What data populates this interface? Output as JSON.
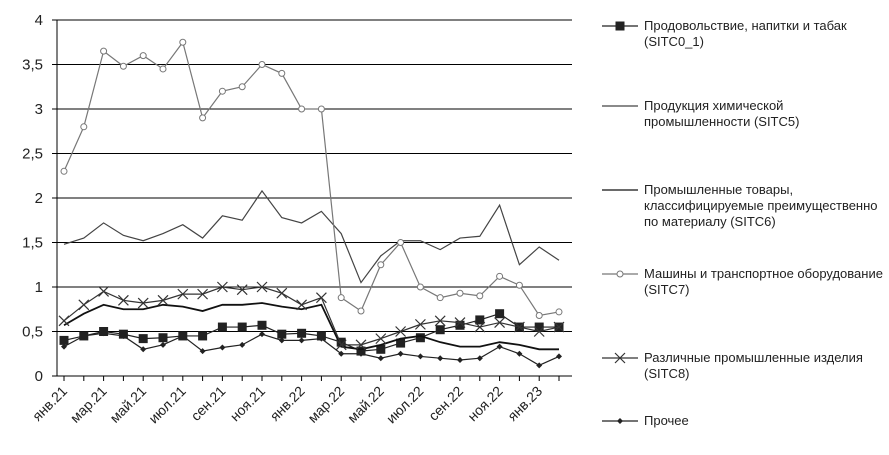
{
  "chart_data": {
    "type": "line",
    "categories": [
      "янв.21",
      null,
      "мар.21",
      null,
      "май.21",
      null,
      "июл.21",
      null,
      "сен.21",
      null,
      "ноя.21",
      null,
      "янв.22",
      null,
      "мар.22",
      null,
      "май.22",
      null,
      "июл.22",
      null,
      "сен.22",
      null,
      "ноя.22",
      null,
      "янв.23",
      null
    ],
    "ylim": [
      0,
      4
    ],
    "yticks": [
      0,
      {
        "value": 0.5,
        "label": "0,5"
      },
      1,
      {
        "value": 1.5,
        "label": "1,5"
      },
      2,
      {
        "value": 2.5,
        "label": "2,5"
      },
      3,
      {
        "value": 3.5,
        "label": "3,5"
      },
      4
    ],
    "grid": true,
    "legend": "right",
    "series": [
      {
        "name": "Продовольствие, напитки и табак (SITC0_1)",
        "color": "#222222",
        "marker": "square",
        "values": [
          0.4,
          0.45,
          0.5,
          0.47,
          0.42,
          0.43,
          0.45,
          0.45,
          0.55,
          0.55,
          0.57,
          0.47,
          0.48,
          0.45,
          0.38,
          0.28,
          0.3,
          0.37,
          0.43,
          0.52,
          0.57,
          0.63,
          0.7,
          0.55,
          0.55,
          0.55
        ]
      },
      {
        "name": "Продукция химической промышленности (SITC5)",
        "color": "#444444",
        "marker": "none",
        "values": [
          1.48,
          1.55,
          1.72,
          1.58,
          1.52,
          1.6,
          1.7,
          1.55,
          1.8,
          1.75,
          2.08,
          1.78,
          1.72,
          1.85,
          1.6,
          1.05,
          1.35,
          1.52,
          1.52,
          1.42,
          1.55,
          1.57,
          1.92,
          1.25,
          1.45,
          1.3
        ]
      },
      {
        "name": "Промышленные товары, классифицируемые преимущественно по материалу (SITC6)",
        "color": "#111111",
        "marker": "none",
        "values": [
          0.57,
          0.7,
          0.8,
          0.75,
          0.75,
          0.8,
          0.78,
          0.73,
          0.8,
          0.8,
          0.82,
          0.78,
          0.75,
          0.8,
          0.33,
          0.3,
          0.35,
          0.42,
          0.45,
          0.38,
          0.33,
          0.33,
          0.38,
          0.35,
          0.3,
          0.3
        ]
      },
      {
        "name": "Машины и транспортное оборудование (SITC7)",
        "color": "#777777",
        "marker": "circle",
        "values": [
          2.3,
          2.8,
          3.65,
          3.48,
          3.6,
          3.45,
          3.75,
          2.9,
          3.2,
          3.25,
          3.5,
          3.4,
          3.0,
          3.0,
          0.88,
          0.73,
          1.25,
          1.5,
          1.0,
          0.88,
          0.93,
          0.9,
          1.12,
          1.02,
          0.68,
          0.72
        ]
      },
      {
        "name": "Различные промышленные изделия (SITC8)",
        "color": "#333333",
        "marker": "x",
        "values": [
          0.62,
          0.8,
          0.95,
          0.85,
          0.82,
          0.85,
          0.92,
          0.92,
          1.0,
          0.97,
          1.0,
          0.93,
          0.8,
          0.88,
          0.35,
          0.35,
          0.42,
          0.5,
          0.58,
          0.62,
          0.6,
          0.55,
          0.6,
          0.55,
          0.5,
          0.55
        ]
      },
      {
        "name": "Прочее",
        "color": "#222222",
        "marker": "diamond",
        "values": [
          0.33,
          0.45,
          0.48,
          0.45,
          0.3,
          0.35,
          0.45,
          0.28,
          0.32,
          0.35,
          0.47,
          0.4,
          0.4,
          0.42,
          0.25,
          0.25,
          0.2,
          0.25,
          0.22,
          0.2,
          0.18,
          0.2,
          0.33,
          0.25,
          0.12,
          0.22
        ]
      }
    ]
  }
}
